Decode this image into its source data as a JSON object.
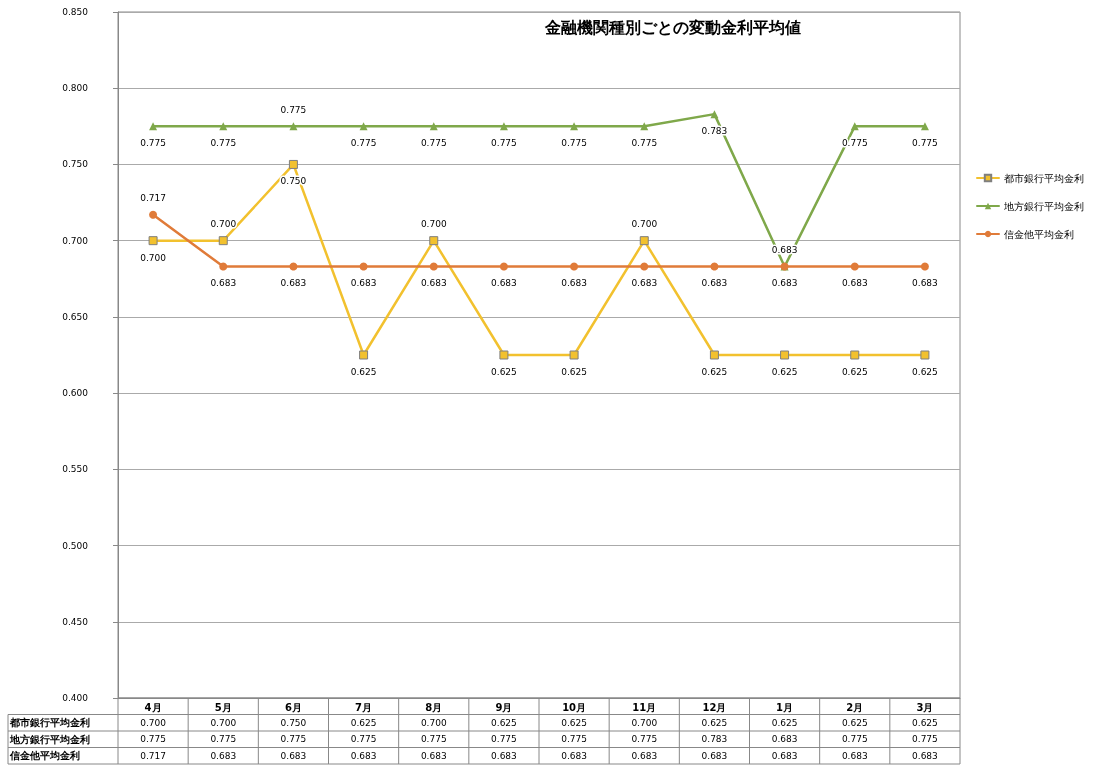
{
  "chart_data": {
    "type": "line",
    "title": "金融機関種別ごとの変動金利平均値",
    "categories": [
      "4月",
      "5月",
      "6月",
      "7月",
      "8月",
      "9月",
      "10月",
      "11月",
      "12月",
      "1月",
      "2月",
      "3月"
    ],
    "series": [
      {
        "name": "都市銀行平均金利",
        "color": "#f2c12e",
        "marker": "square",
        "values": [
          0.7,
          0.7,
          0.75,
          0.625,
          0.7,
          0.625,
          0.625,
          0.7,
          0.625,
          0.625,
          0.625,
          0.625
        ],
        "value_labels": [
          "0.700",
          "0.700",
          "0.750",
          "0.625",
          "0.700",
          "0.625",
          "0.625",
          "0.700",
          "0.625",
          "0.625",
          "0.625",
          "0.625"
        ]
      },
      {
        "name": "地方銀行平均金利",
        "color": "#7fa84a",
        "marker": "triangle",
        "values": [
          0.775,
          0.775,
          0.775,
          0.775,
          0.775,
          0.775,
          0.775,
          0.775,
          0.783,
          0.683,
          0.775,
          0.775
        ],
        "value_labels": [
          "0.775",
          "0.775",
          "0.775",
          "0.775",
          "0.775",
          "0.775",
          "0.775",
          "0.775",
          "0.783",
          "0.683",
          "0.775",
          "0.775"
        ]
      },
      {
        "name": "信金他平均金利",
        "color": "#e07b39",
        "marker": "circle",
        "values": [
          0.717,
          0.683,
          0.683,
          0.683,
          0.683,
          0.683,
          0.683,
          0.683,
          0.683,
          0.683,
          0.683,
          0.683
        ],
        "value_labels": [
          "0.717",
          "0.683",
          "0.683",
          "0.683",
          "0.683",
          "0.683",
          "0.683",
          "0.683",
          "0.683",
          "0.683",
          "0.683",
          "0.683"
        ]
      }
    ],
    "ylim": [
      0.4,
      0.85
    ],
    "yticks": [
      {
        "value": 0.4,
        "label": "0.400"
      },
      {
        "value": 0.45,
        "label": "0.450"
      },
      {
        "value": 0.5,
        "label": "0.500"
      },
      {
        "value": 0.55,
        "label": "0.550"
      },
      {
        "value": 0.6,
        "label": "0.600"
      },
      {
        "value": 0.65,
        "label": "0.650"
      },
      {
        "value": 0.7,
        "label": "0.700"
      },
      {
        "value": 0.75,
        "label": "0.750"
      },
      {
        "value": 0.8,
        "label": "0.800"
      },
      {
        "value": 0.85,
        "label": "0.850"
      }
    ],
    "grid": "y",
    "legend": "right",
    "line_style": "solid"
  }
}
